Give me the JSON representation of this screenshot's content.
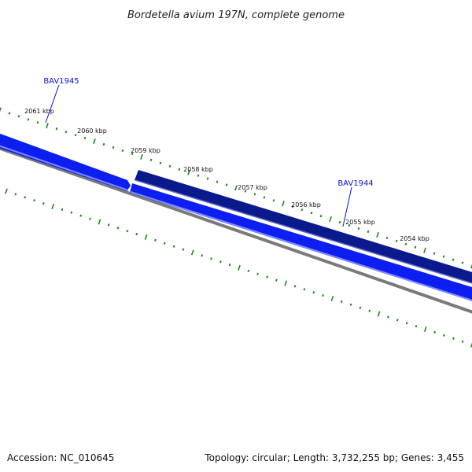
{
  "title": "Bordetella avium 197N, complete genome",
  "colors": {
    "tick": "#1b8a1b",
    "forward_gene": "#0a1a8c",
    "reverse_gene": "#0d1ff0",
    "reverse_gene_light": "#7f8cff",
    "backbone": "#7a7a7a",
    "gene_label": "#1010d0"
  },
  "tick_labels": [
    "2061 kbp",
    "2060 kbp",
    "2059 kbp",
    "2058 kbp",
    "2057 kbp",
    "2056 kbp",
    "2055 kbp",
    "2054 kbp"
  ],
  "genes": [
    {
      "name": "BAV1945",
      "strand": "reverse"
    },
    {
      "name": "BAV1944",
      "strand": "forward"
    }
  ],
  "footer": {
    "accession": "Accession: NC_010645",
    "summary": "Topology: circular; Length: 3,732,255 bp; Genes: 3,455"
  }
}
